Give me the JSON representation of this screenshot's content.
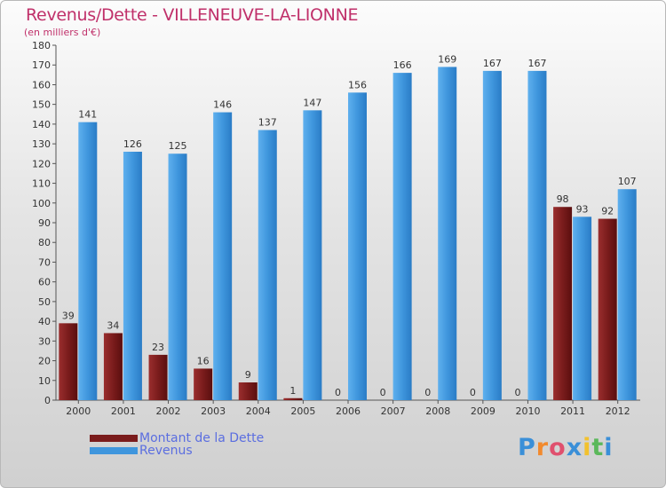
{
  "colors": {
    "dette": "#7a1c1c",
    "revenus": "#3f96dd",
    "title": "#c0306a",
    "legend_text": "#5b6ee0"
  },
  "chart_data": {
    "type": "bar",
    "title": "Revenus/Dette - VILLENEUVE-LA-LIONNE",
    "subtitle": "(en milliers d'€)",
    "categories": [
      "2000",
      "2001",
      "2002",
      "2003",
      "2004",
      "2005",
      "2006",
      "2007",
      "2008",
      "2009",
      "2010",
      "2011",
      "2012"
    ],
    "series": [
      {
        "name": "Montant de la Dette",
        "values": [
          39,
          34,
          23,
          16,
          9,
          1,
          0,
          0,
          0,
          0,
          0,
          98,
          92
        ]
      },
      {
        "name": "Revenus",
        "values": [
          141,
          126,
          125,
          146,
          137,
          147,
          156,
          166,
          169,
          167,
          167,
          93,
          107
        ]
      }
    ],
    "ylim": [
      0,
      180
    ],
    "ytick_step": 10,
    "grid": false,
    "legend_position": "bottom-left"
  },
  "logo": {
    "letters": [
      "P",
      "r",
      "o",
      "x",
      "i",
      "t",
      "i"
    ]
  }
}
